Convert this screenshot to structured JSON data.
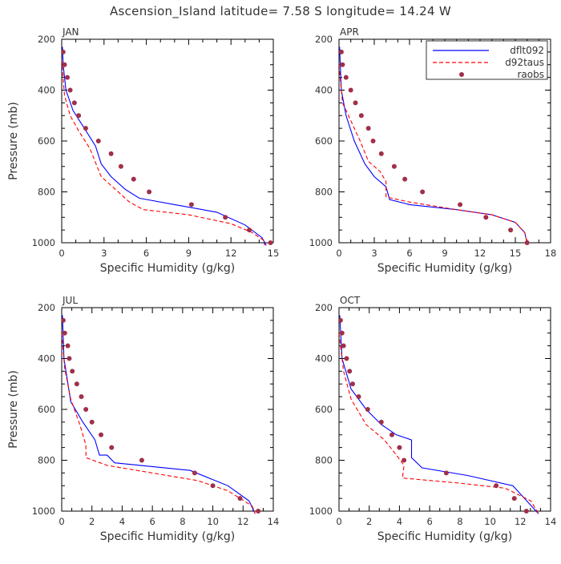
{
  "page": {
    "title": "Ascension_Island  latitude= 7.58 S longitude= 14.24 W"
  },
  "colors": {
    "dflt092": "#0000ff",
    "d92taus": "#ff0000",
    "raobs": "#a0304a"
  },
  "chart_data": [
    {
      "type": "line",
      "panel": "JAN",
      "xlabel": "Specific Humidity (g/kg)",
      "ylabel": "Pressure (mb)",
      "xlim": [
        0,
        15
      ],
      "ylim": [
        200,
        1000
      ],
      "y_reversed": true,
      "xticks": [
        0,
        3,
        6,
        9,
        12,
        15
      ],
      "yticks": [
        200,
        400,
        600,
        800,
        1000
      ],
      "legend": "top-right",
      "series": [
        {
          "name": "dflt092",
          "style": "solid",
          "points": [
            [
              0.05,
              230
            ],
            [
              0.1,
              300
            ],
            [
              0.3,
              400
            ],
            [
              0.8,
              480
            ],
            [
              1.6,
              550
            ],
            [
              2.4,
              620
            ],
            [
              2.8,
              690
            ],
            [
              3.5,
              740
            ],
            [
              4.5,
              790
            ],
            [
              5.5,
              825
            ],
            [
              8,
              850
            ],
            [
              11,
              880
            ],
            [
              13,
              930
            ],
            [
              14.2,
              980
            ],
            [
              14.5,
              1010
            ]
          ]
        },
        {
          "name": "d92taus",
          "style": "dashed",
          "points": [
            [
              0,
              280
            ],
            [
              0.2,
              420
            ],
            [
              0.6,
              500
            ],
            [
              1.2,
              560
            ],
            [
              2,
              630
            ],
            [
              2.8,
              740
            ],
            [
              3.8,
              790
            ],
            [
              4.8,
              840
            ],
            [
              5.8,
              870
            ],
            [
              9,
              890
            ],
            [
              12,
              925
            ],
            [
              13.5,
              960
            ],
            [
              14.3,
              990
            ],
            [
              14.4,
              1010
            ]
          ]
        },
        {
          "name": "raobs",
          "style": "markers",
          "points": [
            [
              0.1,
              250
            ],
            [
              0.2,
              300
            ],
            [
              0.4,
              350
            ],
            [
              0.6,
              400
            ],
            [
              0.9,
              450
            ],
            [
              1.2,
              500
            ],
            [
              1.7,
              550
            ],
            [
              2.6,
              600
            ],
            [
              3.5,
              650
            ],
            [
              4.2,
              700
            ],
            [
              5.1,
              750
            ],
            [
              6.2,
              800
            ],
            [
              9.2,
              850
            ],
            [
              11.6,
              900
            ],
            [
              13.3,
              950
            ],
            [
              14.8,
              1000
            ]
          ]
        }
      ]
    },
    {
      "type": "line",
      "panel": "APR",
      "xlabel": "Specific Humidity (g/kg)",
      "ylabel": "",
      "xlim": [
        0,
        18
      ],
      "ylim": [
        200,
        1000
      ],
      "y_reversed": true,
      "xticks": [
        0,
        3,
        6,
        9,
        12,
        15,
        18
      ],
      "yticks": [
        200,
        400,
        600,
        800,
        1000
      ],
      "legend": "top-right",
      "series": [
        {
          "name": "dflt092",
          "style": "solid",
          "points": [
            [
              0.05,
              230
            ],
            [
              0.2,
              400
            ],
            [
              0.6,
              500
            ],
            [
              1.3,
              600
            ],
            [
              2.2,
              690
            ],
            [
              3,
              740
            ],
            [
              4,
              780
            ],
            [
              4.3,
              830
            ],
            [
              6,
              850
            ],
            [
              10,
              870
            ],
            [
              13,
              890
            ],
            [
              15,
              920
            ],
            [
              15.8,
              960
            ],
            [
              16,
              1000
            ]
          ]
        },
        {
          "name": "d92taus",
          "style": "dashed",
          "points": [
            [
              0,
              300
            ],
            [
              0.3,
              450
            ],
            [
              1,
              520
            ],
            [
              1.8,
              600
            ],
            [
              2.5,
              680
            ],
            [
              3.5,
              720
            ],
            [
              4,
              760
            ],
            [
              4,
              820
            ],
            [
              6,
              840
            ],
            [
              10,
              870
            ],
            [
              13,
              890
            ],
            [
              15,
              920
            ],
            [
              15.8,
              960
            ],
            [
              16,
              1000
            ]
          ]
        },
        {
          "name": "raobs",
          "style": "markers",
          "points": [
            [
              0.2,
              250
            ],
            [
              0.3,
              300
            ],
            [
              0.6,
              350
            ],
            [
              1,
              400
            ],
            [
              1.4,
              450
            ],
            [
              1.9,
              500
            ],
            [
              2.5,
              550
            ],
            [
              2.9,
              600
            ],
            [
              3.6,
              650
            ],
            [
              4.7,
              700
            ],
            [
              5.6,
              750
            ],
            [
              7.1,
              800
            ],
            [
              10.3,
              850
            ],
            [
              12.5,
              900
            ],
            [
              14.6,
              950
            ],
            [
              16,
              1000
            ]
          ]
        }
      ]
    },
    {
      "type": "line",
      "panel": "JUL",
      "xlabel": "Specific Humidity (g/kg)",
      "ylabel": "Pressure (mb)",
      "xlim": [
        0,
        14
      ],
      "ylim": [
        200,
        1000
      ],
      "y_reversed": true,
      "xticks": [
        0,
        2,
        4,
        6,
        8,
        10,
        12,
        14
      ],
      "yticks": [
        200,
        400,
        600,
        800,
        1000
      ],
      "legend": "top-right",
      "series": [
        {
          "name": "dflt092",
          "style": "solid",
          "points": [
            [
              0.05,
              230
            ],
            [
              0.15,
              400
            ],
            [
              0.6,
              570
            ],
            [
              1.4,
              650
            ],
            [
              2.2,
              720
            ],
            [
              2.5,
              780
            ],
            [
              3,
              780
            ],
            [
              3.5,
              810
            ],
            [
              8.5,
              840
            ],
            [
              11,
              900
            ],
            [
              12.4,
              960
            ],
            [
              12.8,
              1010
            ]
          ]
        },
        {
          "name": "d92taus",
          "style": "dashed",
          "points": [
            [
              0,
              300
            ],
            [
              0.2,
              440
            ],
            [
              0.6,
              560
            ],
            [
              1.2,
              660
            ],
            [
              1.6,
              740
            ],
            [
              1.6,
              790
            ],
            [
              3,
              820
            ],
            [
              6,
              850
            ],
            [
              9,
              880
            ],
            [
              11,
              920
            ],
            [
              12.6,
              980
            ],
            [
              12.8,
              1010
            ]
          ]
        },
        {
          "name": "raobs",
          "style": "markers",
          "points": [
            [
              0.1,
              250
            ],
            [
              0.2,
              300
            ],
            [
              0.4,
              350
            ],
            [
              0.5,
              400
            ],
            [
              0.7,
              450
            ],
            [
              1,
              500
            ],
            [
              1.3,
              550
            ],
            [
              1.6,
              600
            ],
            [
              2,
              650
            ],
            [
              2.6,
              700
            ],
            [
              3.3,
              750
            ],
            [
              5.3,
              800
            ],
            [
              8.8,
              850
            ],
            [
              10,
              900
            ],
            [
              11.8,
              950
            ],
            [
              13,
              1000
            ]
          ]
        }
      ]
    },
    {
      "type": "line",
      "panel": "OCT",
      "xlabel": "Specific Humidity (g/kg)",
      "ylabel": "",
      "xlim": [
        0,
        14
      ],
      "ylim": [
        200,
        1000
      ],
      "y_reversed": true,
      "xticks": [
        0,
        2,
        4,
        6,
        8,
        10,
        12,
        14
      ],
      "yticks": [
        200,
        400,
        600,
        800,
        1000
      ],
      "legend": "top-right",
      "series": [
        {
          "name": "dflt092",
          "style": "solid",
          "points": [
            [
              0.05,
              230
            ],
            [
              0.2,
              400
            ],
            [
              0.8,
              520
            ],
            [
              1.8,
              600
            ],
            [
              2.8,
              660
            ],
            [
              3.8,
              700
            ],
            [
              4.8,
              720
            ],
            [
              4.8,
              790
            ],
            [
              5.5,
              830
            ],
            [
              8.5,
              860
            ],
            [
              11.5,
              900
            ],
            [
              13.2,
              1010
            ]
          ]
        },
        {
          "name": "d92taus",
          "style": "dashed",
          "points": [
            [
              0,
              300
            ],
            [
              0.3,
              450
            ],
            [
              0.8,
              560
            ],
            [
              1.8,
              660
            ],
            [
              3,
              720
            ],
            [
              3.8,
              780
            ],
            [
              4.3,
              820
            ],
            [
              4.2,
              870
            ],
            [
              8,
              890
            ],
            [
              11,
              910
            ],
            [
              12.7,
              960
            ],
            [
              13.2,
              1010
            ]
          ]
        },
        {
          "name": "raobs",
          "style": "markers",
          "points": [
            [
              0.1,
              250
            ],
            [
              0.2,
              300
            ],
            [
              0.3,
              350
            ],
            [
              0.5,
              400
            ],
            [
              0.7,
              450
            ],
            [
              0.9,
              500
            ],
            [
              1.3,
              550
            ],
            [
              1.9,
              600
            ],
            [
              2.8,
              650
            ],
            [
              3.5,
              700
            ],
            [
              4,
              750
            ],
            [
              4.3,
              800
            ],
            [
              7.1,
              850
            ],
            [
              10.4,
              900
            ],
            [
              11.6,
              950
            ],
            [
              12.4,
              1000
            ]
          ]
        }
      ]
    }
  ]
}
